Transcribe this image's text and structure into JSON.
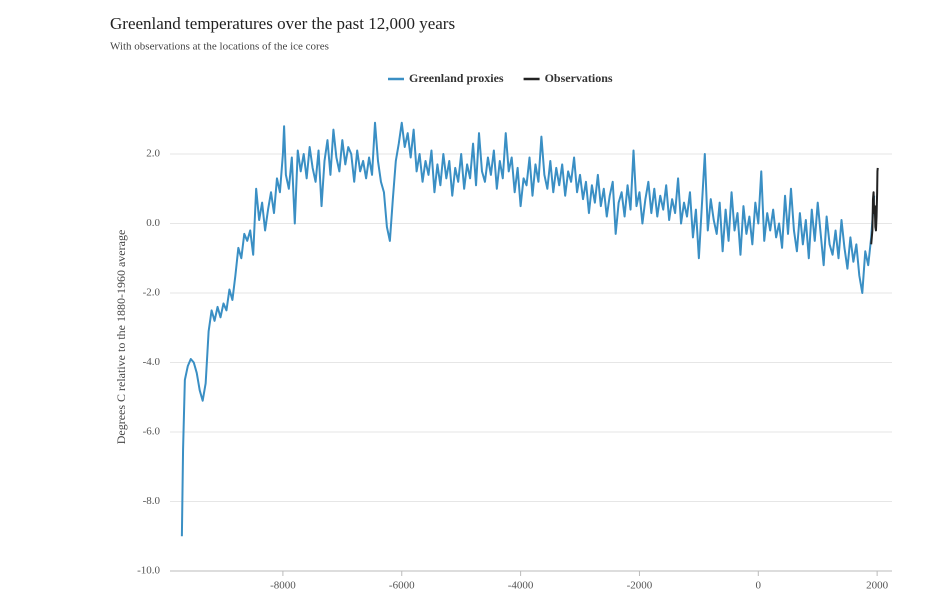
{
  "chart_data": {
    "type": "line",
    "title": "Greenland temperatures over the past 12,000 years",
    "subtitle": "With observations at the locations of the ice cores",
    "y_label": "Degrees C relative to the 1880-1960 average",
    "xlim": [
      -9900,
      2250
    ],
    "xticks": [
      -8000,
      -6000,
      -4000,
      -2000,
      0,
      2000
    ],
    "ylim": [
      -10,
      3
    ],
    "yticks": [
      {
        "value": -10,
        "label": "-10.0"
      },
      {
        "value": -8,
        "label": "-8.0"
      },
      {
        "value": -6,
        "label": "-6.0"
      },
      {
        "value": -4,
        "label": "-4.0"
      },
      {
        "value": -2,
        "label": "-2.0"
      },
      {
        "value": 0,
        "label": "0.0"
      },
      {
        "value": 2,
        "label": "2.0"
      }
    ],
    "grid": true,
    "legend": "top",
    "series": [
      {
        "name": "Greenland proxies",
        "color": "#3a8fc4",
        "x": [
          -9700,
          -9680,
          -9650,
          -9600,
          -9550,
          -9500,
          -9450,
          -9400,
          -9350,
          -9300,
          -9250,
          -9200,
          -9150,
          -9100,
          -9050,
          -9000,
          -8950,
          -8900,
          -8850,
          -8800,
          -8750,
          -8700,
          -8650,
          -8600,
          -8550,
          -8500,
          -8450,
          -8400,
          -8350,
          -8300,
          -8250,
          -8200,
          -8150,
          -8100,
          -8050,
          -8000,
          -7980,
          -7950,
          -7900,
          -7850,
          -7800,
          -7750,
          -7700,
          -7650,
          -7600,
          -7550,
          -7500,
          -7450,
          -7400,
          -7350,
          -7300,
          -7250,
          -7200,
          -7150,
          -7100,
          -7050,
          -7000,
          -6950,
          -6900,
          -6850,
          -6800,
          -6750,
          -6700,
          -6650,
          -6600,
          -6550,
          -6500,
          -6450,
          -6400,
          -6350,
          -6300,
          -6250,
          -6200,
          -6150,
          -6100,
          -6050,
          -6000,
          -5950,
          -5900,
          -5850,
          -5800,
          -5750,
          -5700,
          -5650,
          -5600,
          -5550,
          -5500,
          -5450,
          -5400,
          -5350,
          -5300,
          -5250,
          -5200,
          -5150,
          -5100,
          -5050,
          -5000,
          -4950,
          -4900,
          -4850,
          -4800,
          -4750,
          -4700,
          -4650,
          -4600,
          -4550,
          -4500,
          -4450,
          -4400,
          -4350,
          -4300,
          -4250,
          -4200,
          -4150,
          -4100,
          -4050,
          -4000,
          -3950,
          -3900,
          -3850,
          -3800,
          -3750,
          -3700,
          -3650,
          -3600,
          -3550,
          -3500,
          -3450,
          -3400,
          -3350,
          -3300,
          -3250,
          -3200,
          -3150,
          -3100,
          -3050,
          -3000,
          -2950,
          -2900,
          -2850,
          -2800,
          -2750,
          -2700,
          -2650,
          -2600,
          -2550,
          -2500,
          -2450,
          -2400,
          -2350,
          -2300,
          -2250,
          -2200,
          -2150,
          -2100,
          -2050,
          -2000,
          -1950,
          -1900,
          -1850,
          -1800,
          -1750,
          -1700,
          -1650,
          -1600,
          -1550,
          -1500,
          -1450,
          -1400,
          -1350,
          -1300,
          -1250,
          -1200,
          -1150,
          -1100,
          -1050,
          -1000,
          -950,
          -900,
          -850,
          -800,
          -750,
          -700,
          -650,
          -600,
          -550,
          -500,
          -450,
          -400,
          -350,
          -300,
          -250,
          -200,
          -150,
          -100,
          -50,
          0,
          50,
          100,
          150,
          200,
          250,
          300,
          350,
          400,
          450,
          500,
          550,
          600,
          650,
          700,
          750,
          800,
          850,
          900,
          950,
          1000,
          1050,
          1100,
          1150,
          1200,
          1250,
          1300,
          1350,
          1400,
          1450,
          1500,
          1550,
          1600,
          1650,
          1700,
          1750,
          1800,
          1850,
          1900,
          1950
        ],
        "values": [
          -9.0,
          -6.5,
          -4.5,
          -4.1,
          -3.9,
          -4.0,
          -4.3,
          -4.8,
          -5.1,
          -4.6,
          -3.1,
          -2.5,
          -2.8,
          -2.4,
          -2.7,
          -2.3,
          -2.5,
          -1.9,
          -2.2,
          -1.5,
          -0.7,
          -1.0,
          -0.3,
          -0.5,
          -0.2,
          -0.9,
          1.0,
          0.1,
          0.6,
          -0.2,
          0.4,
          0.9,
          0.3,
          1.3,
          0.9,
          2.0,
          2.8,
          1.4,
          1.0,
          1.9,
          0.0,
          2.1,
          1.5,
          2.0,
          1.3,
          2.2,
          1.6,
          1.2,
          2.1,
          0.5,
          1.8,
          2.4,
          1.4,
          2.7,
          1.9,
          1.5,
          2.4,
          1.7,
          2.2,
          2.0,
          1.2,
          2.1,
          1.5,
          1.8,
          1.3,
          1.9,
          1.4,
          2.9,
          1.8,
          1.2,
          0.9,
          -0.1,
          -0.5,
          0.7,
          1.8,
          2.3,
          2.9,
          2.2,
          2.6,
          1.9,
          2.7,
          1.5,
          2.0,
          1.2,
          1.8,
          1.4,
          2.1,
          0.9,
          1.7,
          1.1,
          2.0,
          1.3,
          1.8,
          0.8,
          1.6,
          1.2,
          2.0,
          1.0,
          1.7,
          1.3,
          2.3,
          1.1,
          2.6,
          1.5,
          1.2,
          1.9,
          1.4,
          2.1,
          1.0,
          1.8,
          1.3,
          2.6,
          1.5,
          1.9,
          0.9,
          1.6,
          0.5,
          1.3,
          1.1,
          1.9,
          0.8,
          1.7,
          1.2,
          2.5,
          1.4,
          1.0,
          1.8,
          0.9,
          1.6,
          1.1,
          1.7,
          0.8,
          1.5,
          1.2,
          1.9,
          0.9,
          1.4,
          0.7,
          1.2,
          0.3,
          1.1,
          0.6,
          1.4,
          0.5,
          1.0,
          0.2,
          0.8,
          1.2,
          -0.3,
          0.6,
          0.9,
          0.2,
          1.1,
          0.4,
          2.1,
          0.5,
          0.9,
          0.0,
          0.7,
          1.2,
          0.3,
          1.0,
          0.2,
          0.8,
          0.4,
          1.1,
          0.1,
          0.7,
          0.3,
          1.3,
          0.0,
          0.6,
          0.2,
          0.9,
          -0.4,
          0.4,
          -1.0,
          0.5,
          2.0,
          -0.2,
          0.7,
          0.1,
          -0.3,
          0.6,
          -0.8,
          0.4,
          -0.5,
          0.9,
          -0.2,
          0.3,
          -0.9,
          0.5,
          -0.3,
          0.2,
          -0.6,
          0.6,
          0.0,
          1.5,
          -0.5,
          0.3,
          -0.2,
          0.4,
          -0.4,
          0.0,
          -0.7,
          0.8,
          -0.3,
          1.0,
          -0.2,
          -0.8,
          0.3,
          -0.6,
          0.1,
          -1.0,
          0.4,
          -0.5,
          0.6,
          -0.3,
          -1.2,
          0.2,
          -0.6,
          -0.9,
          -0.2,
          -1.0,
          0.1,
          -0.7,
          -1.3,
          -0.4,
          -1.1,
          -0.6,
          -1.5,
          -2.0,
          -0.8,
          -1.2,
          -0.4,
          0.8
        ]
      },
      {
        "name": "Observations",
        "color": "#222222",
        "x": [
          1900,
          1920,
          1930,
          1940,
          1950,
          1960,
          1970,
          1980,
          1990,
          2000,
          2005,
          2010
        ],
        "values": [
          -0.6,
          -0.2,
          0.7,
          0.9,
          0.3,
          0.5,
          -0.1,
          -0.2,
          0.2,
          0.9,
          1.5,
          1.6
        ]
      }
    ]
  }
}
